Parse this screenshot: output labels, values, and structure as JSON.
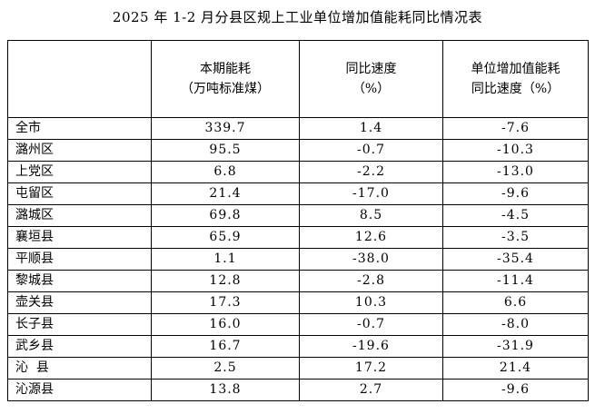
{
  "title": "2025 年 1-2 月分县区规上工业单位增加值能耗同比情况表",
  "table": {
    "headers": [
      {
        "line1": "",
        "line2": ""
      },
      {
        "line1": "本期能耗",
        "line2": "（万吨标准煤）"
      },
      {
        "line1": "同比速度",
        "line2": "（%）"
      },
      {
        "line1": "单位增加值能耗",
        "line2": "同比速度（%）"
      }
    ],
    "rows": [
      {
        "region": "全市",
        "consumption": "339.7",
        "yoy": "1.4",
        "unit_yoy": "-7.6"
      },
      {
        "region": "潞州区",
        "consumption": "95.5",
        "yoy": "-0.7",
        "unit_yoy": "-10.3"
      },
      {
        "region": "上党区",
        "consumption": "6.8",
        "yoy": "-2.2",
        "unit_yoy": "-13.0"
      },
      {
        "region": "屯留区",
        "consumption": "21.4",
        "yoy": "-17.0",
        "unit_yoy": "-9.6"
      },
      {
        "region": "潞城区",
        "consumption": "69.8",
        "yoy": "8.5",
        "unit_yoy": "-4.5"
      },
      {
        "region": "襄垣县",
        "consumption": "65.9",
        "yoy": "12.6",
        "unit_yoy": "-3.5"
      },
      {
        "region": "平顺县",
        "consumption": "1.1",
        "yoy": "-38.0",
        "unit_yoy": "-35.4"
      },
      {
        "region": "黎城县",
        "consumption": "12.8",
        "yoy": "-2.8",
        "unit_yoy": "-11.4"
      },
      {
        "region": "壶关县",
        "consumption": "17.3",
        "yoy": "10.3",
        "unit_yoy": "6.6"
      },
      {
        "region": "长子县",
        "consumption": "16.0",
        "yoy": "-0.7",
        "unit_yoy": "-8.0"
      },
      {
        "region": "武乡县",
        "consumption": "16.7",
        "yoy": "-19.6",
        "unit_yoy": "-31.9"
      },
      {
        "region": "沁  县",
        "consumption": "2.5",
        "yoy": "17.2",
        "unit_yoy": "21.4"
      },
      {
        "region": "沁源县",
        "consumption": "13.8",
        "yoy": "2.7",
        "unit_yoy": "-9.6"
      }
    ]
  }
}
